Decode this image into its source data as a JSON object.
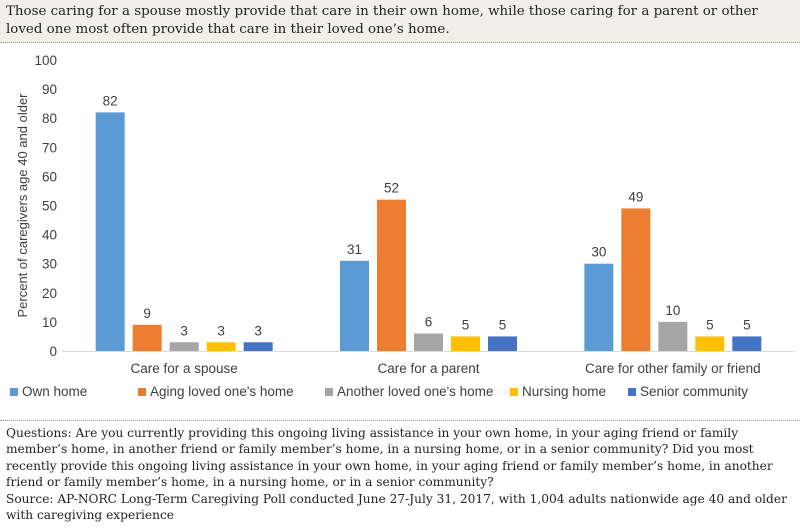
{
  "header": {
    "text": "Those caring for a spouse mostly provide that care in their own home, while those caring for a parent or other loved one most often provide that care in their loved one’s home."
  },
  "footer": {
    "questions": "Questions: Are you currently providing this ongoing living assistance in your own home, in your aging friend or family member’s home, in another friend or family member’s home, in a nursing home, or in a senior community? Did you most recently provide this ongoing living assistance in your own home, in your aging friend or family member’s home, in another friend or family member’s home, in a nursing home, or in a senior community?",
    "source": "Source: AP-NORC Long-Term Caregiving Poll conducted June 27-July 31, 2017, with 1,004 adults nationwide age 40 and older with caregiving experience"
  },
  "chart_data": {
    "type": "bar",
    "categories": [
      "Care for a spouse",
      "Care for a parent",
      "Care for other family or friend"
    ],
    "series": [
      {
        "name": "Own home",
        "values": [
          82,
          31,
          30
        ],
        "color": "#5b9bd5"
      },
      {
        "name": "Aging loved one's home",
        "values": [
          9,
          52,
          49
        ],
        "color": "#ed7d31"
      },
      {
        "name": "Another loved one's home",
        "values": [
          3,
          6,
          10
        ],
        "color": "#a5a5a5"
      },
      {
        "name": "Nursing home",
        "values": [
          3,
          5,
          5
        ],
        "color": "#ffc000"
      },
      {
        "name": "Senior community",
        "values": [
          3,
          5,
          5
        ],
        "color": "#4472c4"
      }
    ],
    "ylabel": "Percent of caregivers age 40 and older",
    "ylim": [
      0,
      100
    ],
    "yticks": [
      0,
      10,
      20,
      30,
      40,
      50,
      60,
      70,
      80,
      90,
      100
    ],
    "data_labels": true,
    "grid": false,
    "legend_position": "bottom"
  }
}
